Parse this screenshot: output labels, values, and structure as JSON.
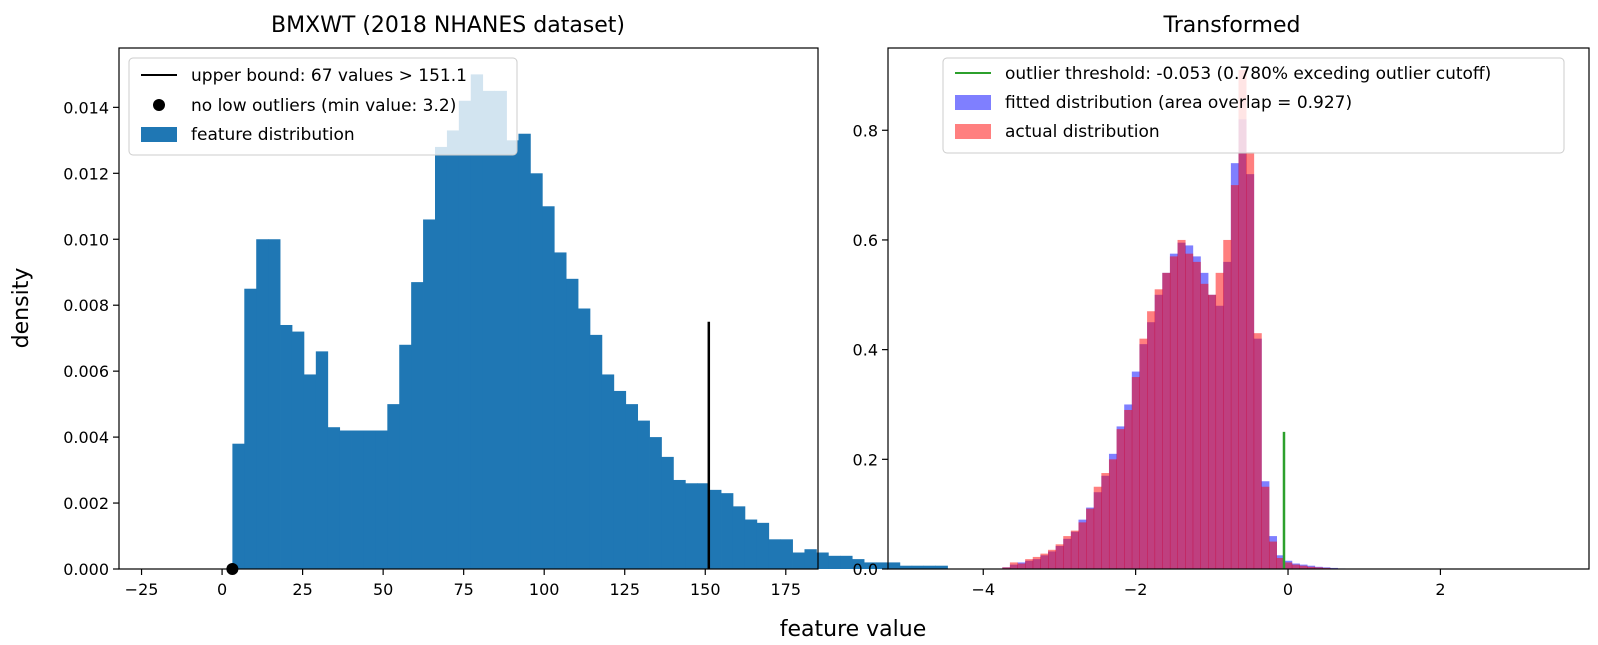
{
  "figure": {
    "xlabel": "feature value",
    "ylabel": "density"
  },
  "chart_data": [
    {
      "type": "bar",
      "title": "BMXWT (2018 NHANES dataset)",
      "xlim": [
        -32,
        185
      ],
      "ylim": [
        0,
        0.0158
      ],
      "xticks": [
        -25,
        0,
        25,
        50,
        75,
        100,
        125,
        150,
        175
      ],
      "yticks": [
        0.0,
        0.002,
        0.004,
        0.006,
        0.008,
        0.01,
        0.012,
        0.014
      ],
      "ytick_format": 3,
      "grid": false,
      "legend_placement": "upper left",
      "bar_color": "#1f77b4",
      "bins": {
        "start": 3.2,
        "width": 3.7,
        "values": [
          0.0038,
          0.0085,
          0.01,
          0.01,
          0.0074,
          0.0072,
          0.0059,
          0.0066,
          0.0043,
          0.0042,
          0.0042,
          0.0042,
          0.0042,
          0.005,
          0.0068,
          0.0087,
          0.0106,
          0.0128,
          0.0133,
          0.0142,
          0.015,
          0.0145,
          0.0145,
          0.013,
          0.0132,
          0.012,
          0.011,
          0.0096,
          0.0088,
          0.0079,
          0.0071,
          0.0059,
          0.0054,
          0.005,
          0.0045,
          0.004,
          0.0034,
          0.0027,
          0.0026,
          0.0026,
          0.0024,
          0.0023,
          0.0019,
          0.0015,
          0.0014,
          0.0009,
          0.0009,
          0.0005,
          0.0006,
          0.0005,
          0.0004,
          0.0004,
          0.0003,
          0.0002,
          0.0002,
          0.0002,
          0.0001,
          0.0001,
          0.0001,
          0.0001
        ]
      },
      "vline": {
        "x": 151.1,
        "y_max": 0.0075,
        "color": "#000000"
      },
      "point": {
        "x": 3.2,
        "y": 0.0,
        "color": "#000000"
      },
      "legend": [
        {
          "kind": "line",
          "color": "#000000",
          "label": "upper bound: 67 values > 151.1"
        },
        {
          "kind": "dot",
          "color": "#000000",
          "label": "no low outliers (min value: 3.2)"
        },
        {
          "kind": "patch",
          "color": "#1f77b4",
          "label": "feature distribution"
        }
      ]
    },
    {
      "type": "bar",
      "title": "Transformed",
      "xlim": [
        -5.25,
        3.95
      ],
      "ylim": [
        0,
        0.95
      ],
      "xticks": [
        -4,
        -2,
        0,
        2
      ],
      "yticks": [
        0.0,
        0.2,
        0.4,
        0.6,
        0.8
      ],
      "ytick_format": 1,
      "grid": false,
      "legend_placement": "upper right",
      "series": [
        {
          "name": "fitted distribution (area overlap = 0.927)",
          "color": "#0000ff",
          "opacity": 0.5,
          "start": -3.75,
          "width": 0.1,
          "values": [
            0.003,
            0.008,
            0.012,
            0.015,
            0.018,
            0.025,
            0.032,
            0.042,
            0.055,
            0.068,
            0.09,
            0.112,
            0.14,
            0.17,
            0.21,
            0.26,
            0.3,
            0.36,
            0.41,
            0.45,
            0.5,
            0.54,
            0.575,
            0.595,
            0.59,
            0.57,
            0.54,
            0.5,
            0.48,
            0.56,
            0.74,
            0.82,
            0.72,
            0.42,
            0.16,
            0.06,
            0.025,
            0.015,
            0.01,
            0.008,
            0.006,
            0.004,
            0.003,
            0.002,
            0.001
          ]
        },
        {
          "name": "actual distribution",
          "color": "#ff0000",
          "opacity": 0.5,
          "start": -3.75,
          "width": 0.1,
          "values": [
            0.003,
            0.012,
            0.01,
            0.018,
            0.022,
            0.028,
            0.035,
            0.045,
            0.06,
            0.07,
            0.085,
            0.11,
            0.15,
            0.175,
            0.2,
            0.255,
            0.29,
            0.35,
            0.42,
            0.47,
            0.51,
            0.54,
            0.57,
            0.6,
            0.575,
            0.56,
            0.52,
            0.5,
            0.54,
            0.6,
            0.7,
            0.91,
            0.76,
            0.43,
            0.15,
            0.05,
            0.02,
            0.012,
            0.008,
            0.006,
            0.004,
            0.003,
            0.002,
            0.001,
            0.0
          ]
        }
      ],
      "vline": {
        "x": -0.053,
        "y_max": 0.25,
        "color": "#2ca02c"
      },
      "legend": [
        {
          "kind": "line",
          "color": "#2ca02c",
          "label": "outlier threshold: -0.053 (0.780% exceding outlier cutoff)"
        },
        {
          "kind": "patch",
          "color": "#0000ff",
          "opacity": 0.5,
          "label": "fitted distribution (area overlap = 0.927)"
        },
        {
          "kind": "patch",
          "color": "#ff0000",
          "opacity": 0.5,
          "label": "actual distribution"
        }
      ]
    }
  ]
}
